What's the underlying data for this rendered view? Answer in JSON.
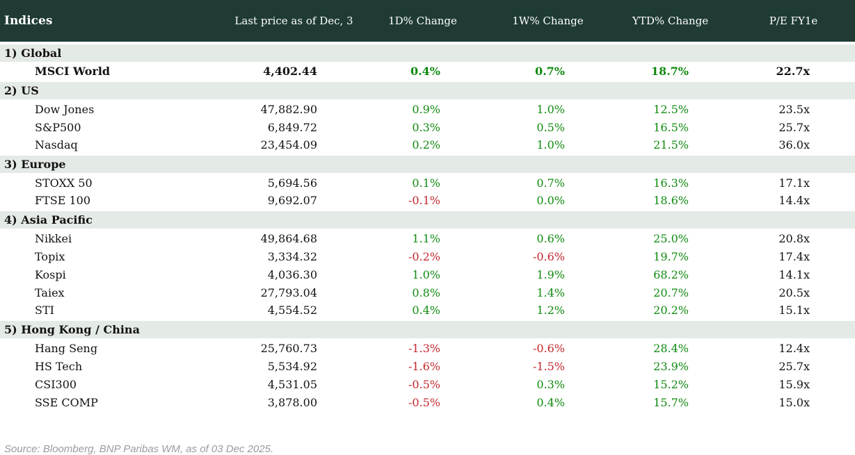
{
  "chart_data": {
    "type": "table",
    "title": "Indices",
    "columns": [
      "Indices",
      "Last price as of Dec, 3",
      "1D% Change",
      "1W% Change",
      "YTD% Change",
      "P/E FY1e"
    ],
    "sections": [
      {
        "label": "1) Global",
        "rows": [
          {
            "name": "MSCI World",
            "price": "4,402.44",
            "d1": "0.4%",
            "w1": "0.7%",
            "ytd": "18.7%",
            "pe": "22.7x",
            "bold": true
          }
        ]
      },
      {
        "label": "2) US",
        "rows": [
          {
            "name": "Dow Jones",
            "price": "47,882.90",
            "d1": "0.9%",
            "w1": "1.0%",
            "ytd": "12.5%",
            "pe": "23.5x",
            "bold": false
          },
          {
            "name": "S&P500",
            "price": "6,849.72",
            "d1": "0.3%",
            "w1": "0.5%",
            "ytd": "16.5%",
            "pe": "25.7x",
            "bold": false
          },
          {
            "name": "Nasdaq",
            "price": "23,454.09",
            "d1": "0.2%",
            "w1": "1.0%",
            "ytd": "21.5%",
            "pe": "36.0x",
            "bold": false
          }
        ]
      },
      {
        "label": "3) Europe",
        "rows": [
          {
            "name": "STOXX 50",
            "price": "5,694.56",
            "d1": "0.1%",
            "w1": "0.7%",
            "ytd": "16.3%",
            "pe": "17.1x",
            "bold": false
          },
          {
            "name": "FTSE 100",
            "price": "9,692.07",
            "d1": "-0.1%",
            "w1": "0.0%",
            "ytd": "18.6%",
            "pe": "14.4x",
            "bold": false
          }
        ]
      },
      {
        "label": "4) Asia Pacific",
        "rows": [
          {
            "name": "Nikkei",
            "price": "49,864.68",
            "d1": "1.1%",
            "w1": "0.6%",
            "ytd": "25.0%",
            "pe": "20.8x",
            "bold": false
          },
          {
            "name": "Topix",
            "price": "3,334.32",
            "d1": "-0.2%",
            "w1": "-0.6%",
            "ytd": "19.7%",
            "pe": "17.4x",
            "bold": false
          },
          {
            "name": "Kospi",
            "price": "4,036.30",
            "d1": "1.0%",
            "w1": "1.9%",
            "ytd": "68.2%",
            "pe": "14.1x",
            "bold": false
          },
          {
            "name": "Taiex",
            "price": "27,793.04",
            "d1": "0.8%",
            "w1": "1.4%",
            "ytd": "20.7%",
            "pe": "20.5x",
            "bold": false
          },
          {
            "name": "STI",
            "price": "4,554.52",
            "d1": "0.4%",
            "w1": "1.2%",
            "ytd": "20.2%",
            "pe": "15.1x",
            "bold": false
          }
        ]
      },
      {
        "label": "5) Hong Kong / China",
        "rows": [
          {
            "name": "Hang Seng",
            "price": "25,760.73",
            "d1": "-1.3%",
            "w1": "-0.6%",
            "ytd": "28.4%",
            "pe": "12.4x",
            "bold": false
          },
          {
            "name": "HS Tech",
            "price": "5,534.92",
            "d1": "-1.6%",
            "w1": "-1.5%",
            "ytd": "23.9%",
            "pe": "25.7x",
            "bold": false
          },
          {
            "name": "CSI300",
            "price": "4,531.05",
            "d1": "-0.5%",
            "w1": "0.3%",
            "ytd": "15.2%",
            "pe": "15.9x",
            "bold": false
          },
          {
            "name": "SSE COMP",
            "price": "3,878.00",
            "d1": "-0.5%",
            "w1": "0.4%",
            "ytd": "15.7%",
            "pe": "15.0x",
            "bold": false
          }
        ]
      }
    ],
    "layout": {
      "value_colors": "negative values red, others green; price and P/E black",
      "legend_position": "none",
      "grid": "off"
    }
  },
  "footer": {
    "source": "Source: Bloomberg, BNP Paribas WM, as of 03 Dec 2025."
  },
  "colors": {
    "header_bg": "#1f3b34",
    "section_bg": "#e4eae5",
    "positive": "#108a10",
    "negative": "#c2272d",
    "text": "#121212",
    "source_text": "#9b9b9b"
  }
}
